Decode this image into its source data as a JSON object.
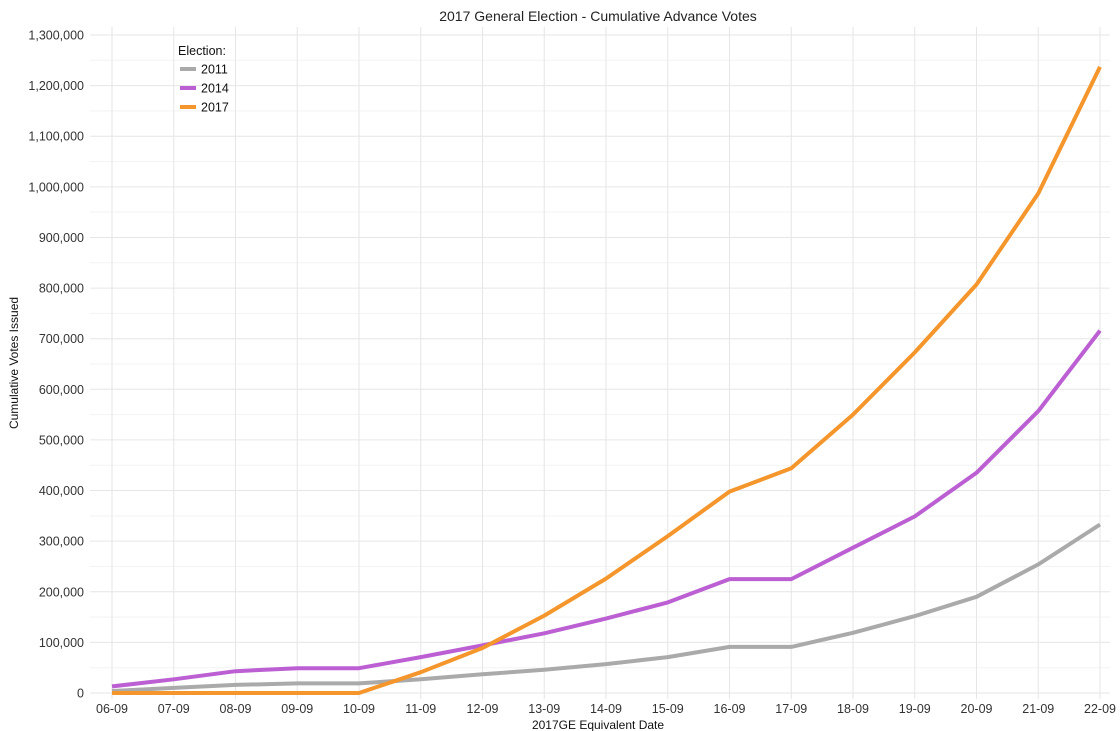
{
  "chart_data": {
    "type": "line",
    "title": "2017 General Election - Cumulative Advance Votes",
    "xlabel": "2017GE Equivalent Date",
    "ylabel": "Cumulative Votes Issued",
    "categories": [
      "06-09",
      "07-09",
      "08-09",
      "09-09",
      "10-09",
      "11-09",
      "12-09",
      "13-09",
      "14-09",
      "15-09",
      "16-09",
      "17-09",
      "18-09",
      "19-09",
      "20-09",
      "21-09",
      "22-09"
    ],
    "ylim": [
      0,
      1300000
    ],
    "yticks": [
      0,
      100000,
      200000,
      300000,
      400000,
      500000,
      600000,
      700000,
      800000,
      900000,
      1000000,
      1100000,
      1200000,
      1300000
    ],
    "ytick_labels": [
      "0",
      "100,000",
      "200,000",
      "300,000",
      "400,000",
      "500,000",
      "600,000",
      "700,000",
      "800,000",
      "900,000",
      "1,000,000",
      "1,100,000",
      "1,200,000",
      "1,300,000"
    ],
    "grid": true,
    "legend": {
      "title": "Election:",
      "position": "top-left"
    },
    "series": [
      {
        "name": "2011",
        "color": "#aaaaaa",
        "values": [
          4000,
          10000,
          16000,
          19000,
          19000,
          27000,
          37000,
          46000,
          57000,
          71000,
          91000,
          91000,
          119000,
          152000,
          190000,
          254000,
          333000
        ]
      },
      {
        "name": "2014",
        "color": "#bb5fd3",
        "values": [
          13000,
          27000,
          43000,
          49000,
          49000,
          71000,
          94000,
          118000,
          147000,
          179000,
          225000,
          225000,
          287000,
          349000,
          435000,
          557000,
          716000
        ]
      },
      {
        "name": "2017",
        "color": "#f4962b",
        "values": [
          0,
          0,
          0,
          0,
          0,
          41000,
          89000,
          153000,
          226000,
          310000,
          398000,
          444000,
          550000,
          673000,
          807000,
          987000,
          1237000
        ]
      }
    ]
  }
}
